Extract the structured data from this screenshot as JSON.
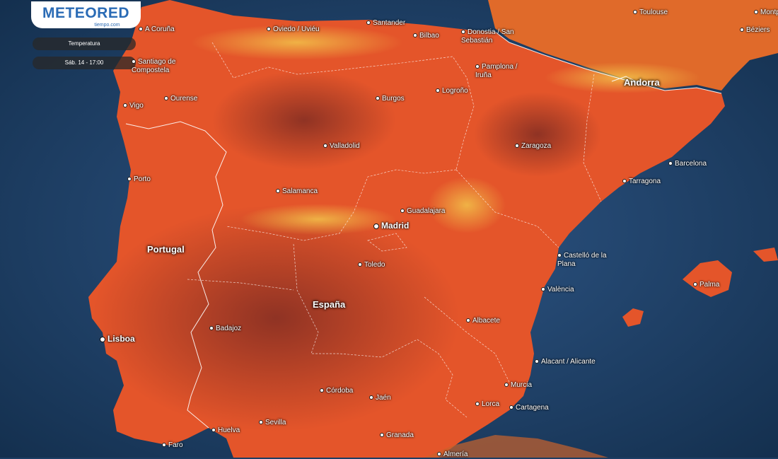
{
  "brand": {
    "name": "METEORED",
    "sub": "tiempo.com"
  },
  "controls": {
    "layer": "Temperatura",
    "time": "Sáb. 14 - 17:00"
  },
  "countries": {
    "portugal": "Portugal",
    "espana": "España",
    "andorra": "Andorra"
  },
  "cities": {
    "coruna": "A Coruña",
    "oviedo": "Oviedo / Uviéu",
    "santander": "Santander",
    "bilbao": "Bilbao",
    "donostia": "Donostia / San Sebastián",
    "toulouse": "Toulouse",
    "montp": "Montp",
    "beziers": "Béziers",
    "santiago": "Santiago de Compostela",
    "pamplona": "Pamplona / Iruña",
    "ourense": "Ourense",
    "logrono": "Logroño",
    "burgos": "Burgos",
    "vigo": "Vigo",
    "valladolid": "Valladolid",
    "zaragoza": "Zaragoza",
    "barcelona": "Barcelona",
    "porto": "Porto",
    "tarragona": "Tarragona",
    "salamanca": "Salamanca",
    "guadalajara": "Guadalajara",
    "madrid": "Madrid",
    "castello": "Castelló de la Plana",
    "toledo": "Toledo",
    "palma": "Palma",
    "valencia": "València",
    "lisboa": "Lisboa",
    "badajoz": "Badajoz",
    "albacete": "Albacete",
    "alicante": "Alacant / Alicante",
    "murcia": "Murcia",
    "cordoba": "Córdoba",
    "jaen": "Jaén",
    "lorca": "Lorca",
    "cartagena": "Cartagena",
    "sevilla": "Sevilla",
    "huelva": "Huelva",
    "faro": "Faro",
    "granada": "Granada",
    "almeria": "Almería"
  }
}
